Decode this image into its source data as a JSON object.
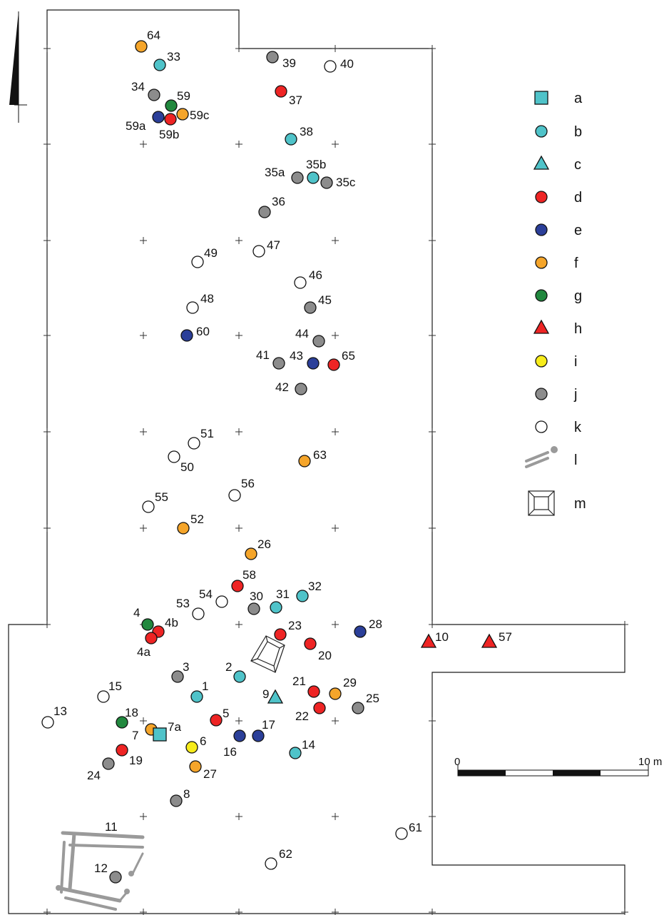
{
  "colors": {
    "a": "#4fc3c9",
    "b": "#4fc3c9",
    "c": "#4fc3c9",
    "d": "#ee2424",
    "e": "#2b3f99",
    "f": "#f5a52a",
    "g": "#21883e",
    "h": "#ee2424",
    "i": "#f7ec1b",
    "j": "#8c8c8c",
    "k": "#ffffff",
    "feature": "#9a9a9a",
    "line": "#1a1a1a"
  },
  "legend": [
    {
      "key": "a",
      "label": "a",
      "symbol": "square"
    },
    {
      "key": "b",
      "label": "b",
      "symbol": "circle"
    },
    {
      "key": "c",
      "label": "c",
      "symbol": "triangle"
    },
    {
      "key": "d",
      "label": "d",
      "symbol": "circle"
    },
    {
      "key": "e",
      "label": "e",
      "symbol": "circle"
    },
    {
      "key": "f",
      "label": "f",
      "symbol": "circle"
    },
    {
      "key": "g",
      "label": "g",
      "symbol": "circle"
    },
    {
      "key": "h",
      "label": "h",
      "symbol": "triangle"
    },
    {
      "key": "i",
      "label": "i",
      "symbol": "circle"
    },
    {
      "key": "j",
      "label": "j",
      "symbol": "circle"
    },
    {
      "key": "k",
      "label": "k",
      "symbol": "circle"
    },
    {
      "key": "l",
      "label": "l",
      "symbol": "feature-icon"
    },
    {
      "key": "m",
      "label": "m",
      "symbol": "pit-icon"
    }
  ],
  "scale_bar": {
    "start_label": "0",
    "end_label": "10 m"
  },
  "features": {
    "timber_frame_label": "11",
    "pit_label": "m"
  },
  "finds": [
    {
      "id": "64",
      "cat": "f"
    },
    {
      "id": "33",
      "cat": "b"
    },
    {
      "id": "34",
      "cat": "j"
    },
    {
      "id": "59",
      "cat": "g"
    },
    {
      "id": "59a",
      "cat": "e"
    },
    {
      "id": "59b",
      "cat": "d"
    },
    {
      "id": "59c",
      "cat": "f"
    },
    {
      "id": "39",
      "cat": "j"
    },
    {
      "id": "40",
      "cat": "k"
    },
    {
      "id": "37",
      "cat": "d"
    },
    {
      "id": "38",
      "cat": "b"
    },
    {
      "id": "35a",
      "cat": "j"
    },
    {
      "id": "35b",
      "cat": "b"
    },
    {
      "id": "35c",
      "cat": "j"
    },
    {
      "id": "36",
      "cat": "j"
    },
    {
      "id": "47",
      "cat": "k"
    },
    {
      "id": "49",
      "cat": "k"
    },
    {
      "id": "46",
      "cat": "k"
    },
    {
      "id": "48",
      "cat": "k"
    },
    {
      "id": "45",
      "cat": "j"
    },
    {
      "id": "60",
      "cat": "e"
    },
    {
      "id": "44",
      "cat": "j"
    },
    {
      "id": "41",
      "cat": "j"
    },
    {
      "id": "43",
      "cat": "e"
    },
    {
      "id": "65",
      "cat": "d"
    },
    {
      "id": "42",
      "cat": "j"
    },
    {
      "id": "51",
      "cat": "k"
    },
    {
      "id": "50",
      "cat": "k"
    },
    {
      "id": "63",
      "cat": "f"
    },
    {
      "id": "56",
      "cat": "k"
    },
    {
      "id": "55",
      "cat": "k"
    },
    {
      "id": "52",
      "cat": "f"
    },
    {
      "id": "26",
      "cat": "f"
    },
    {
      "id": "58",
      "cat": "d"
    },
    {
      "id": "54",
      "cat": "k"
    },
    {
      "id": "53",
      "cat": "k"
    },
    {
      "id": "30",
      "cat": "j"
    },
    {
      "id": "31",
      "cat": "b"
    },
    {
      "id": "32",
      "cat": "b"
    },
    {
      "id": "4",
      "cat": "g"
    },
    {
      "id": "4b",
      "cat": "d"
    },
    {
      "id": "4a",
      "cat": "d"
    },
    {
      "id": "23",
      "cat": "d"
    },
    {
      "id": "28",
      "cat": "e"
    },
    {
      "id": "10",
      "cat": "h"
    },
    {
      "id": "57",
      "cat": "h"
    },
    {
      "id": "20",
      "cat": "d"
    },
    {
      "id": "3",
      "cat": "j"
    },
    {
      "id": "2",
      "cat": "b"
    },
    {
      "id": "1",
      "cat": "b"
    },
    {
      "id": "9",
      "cat": "c"
    },
    {
      "id": "21",
      "cat": "d"
    },
    {
      "id": "29",
      "cat": "f"
    },
    {
      "id": "22",
      "cat": "d"
    },
    {
      "id": "25",
      "cat": "j"
    },
    {
      "id": "15",
      "cat": "k"
    },
    {
      "id": "13",
      "cat": "k"
    },
    {
      "id": "18",
      "cat": "g"
    },
    {
      "id": "7",
      "cat": "f"
    },
    {
      "id": "7a",
      "cat": "a"
    },
    {
      "id": "5",
      "cat": "d"
    },
    {
      "id": "16",
      "cat": "e"
    },
    {
      "id": "17",
      "cat": "e"
    },
    {
      "id": "6",
      "cat": "i"
    },
    {
      "id": "14",
      "cat": "b"
    },
    {
      "id": "19",
      "cat": "d"
    },
    {
      "id": "24",
      "cat": "j"
    },
    {
      "id": "27",
      "cat": "f"
    },
    {
      "id": "8",
      "cat": "j"
    },
    {
      "id": "61",
      "cat": "k"
    },
    {
      "id": "62",
      "cat": "k"
    },
    {
      "id": "12",
      "cat": "j"
    }
  ]
}
